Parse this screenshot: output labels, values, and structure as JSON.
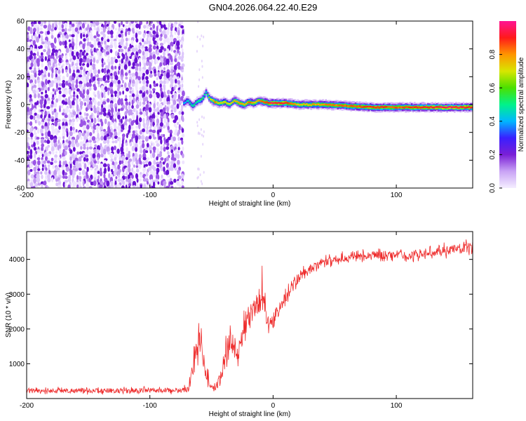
{
  "page": {
    "title": "GN04.2026.064.22.40.E29"
  },
  "chart_data": [
    {
      "type": "heatmap",
      "title": "GN04.2026.064.22.40.E29",
      "xlabel": "Height of straight line (km)",
      "ylabel": "Frequency (Hz)",
      "xlim": [
        -200,
        162
      ],
      "ylim": [
        -60,
        60
      ],
      "xticks": [
        -200,
        -100,
        0,
        100
      ],
      "yticks": [
        -60,
        -40,
        -20,
        0,
        20,
        40,
        60
      ],
      "noise_region_x": [
        -200,
        -73
      ],
      "signal_track": {
        "description": "narrow high-amplitude ridge near 0 Hz",
        "x": [
          -73,
          -70,
          -66,
          -62,
          -58,
          -55,
          -52,
          -48,
          -44,
          -40,
          -36,
          -32,
          -28,
          -24,
          -20,
          -16,
          -12,
          -8,
          -4,
          0,
          10,
          20,
          40,
          60,
          80,
          100,
          120,
          140,
          162
        ],
        "freq": [
          1,
          3,
          -1,
          2,
          4,
          9,
          4,
          2,
          1,
          2,
          0,
          3,
          1,
          0,
          2,
          1,
          3,
          2,
          1,
          1,
          1,
          0,
          0,
          -1,
          -2,
          -2,
          -2,
          -2,
          -2
        ],
        "amplitude": [
          0.4,
          0.45,
          0.5,
          0.5,
          0.55,
          0.45,
          0.65,
          0.85,
          0.7,
          0.75,
          0.7,
          0.75,
          0.8,
          0.75,
          0.85,
          0.75,
          0.8,
          0.85,
          0.9,
          0.95,
          0.9,
          0.75,
          0.8,
          0.85,
          0.9,
          0.85,
          0.9,
          0.95,
          0.9
        ]
      },
      "colorbar": {
        "label": "Normalized spectral amplitude",
        "ticks": [
          "0.0",
          "0.2",
          "0.4",
          "0.6",
          "0.8"
        ],
        "range": [
          0,
          1
        ],
        "colors": [
          "#f4eeff",
          "#c9a3f5",
          "#7a1fd6",
          "#3a1fff",
          "#00b7ff",
          "#00f28a",
          "#4be000",
          "#d8e600",
          "#ff9500",
          "#ff1a1a",
          "#ff1493"
        ]
      }
    },
    {
      "type": "line",
      "xlabel": "Height of straight line (km)",
      "ylabel": "SNR (10 * v/v)",
      "xlim": [
        -200,
        162
      ],
      "ylim": [
        0,
        4800
      ],
      "xticks": [
        -200,
        -100,
        0,
        100
      ],
      "yticks": [
        1000,
        2000,
        3000,
        4000
      ],
      "series": [
        {
          "name": "SNR",
          "color": "#ee2a2a",
          "x": [
            -200,
            -170,
            -140,
            -110,
            -80,
            -70,
            -66,
            -62,
            -59,
            -56,
            -53,
            -50,
            -47,
            -44,
            -40,
            -36,
            -32,
            -28,
            -24,
            -20,
            -16,
            -12,
            -9,
            -6,
            -3,
            0,
            5,
            10,
            15,
            20,
            25,
            30,
            40,
            50,
            60,
            70,
            80,
            90,
            100,
            110,
            120,
            130,
            140,
            150,
            162
          ],
          "values": [
            220,
            230,
            225,
            230,
            240,
            260,
            700,
            1400,
            1700,
            900,
            600,
            300,
            350,
            500,
            1000,
            1600,
            1500,
            1300,
            2000,
            2400,
            2600,
            2700,
            3000,
            2500,
            2100,
            2300,
            2600,
            2900,
            3200,
            3400,
            3600,
            3700,
            3900,
            4000,
            4050,
            4100,
            4150,
            4100,
            4150,
            4100,
            4150,
            4200,
            4250,
            4300,
            4350
          ]
        }
      ],
      "noise_amplitude": [
        120,
        120,
        120,
        120,
        120,
        150,
        500,
        700,
        600,
        400,
        300,
        150,
        200,
        300,
        500,
        700,
        700,
        600,
        700,
        600,
        500,
        500,
        900,
        500,
        400,
        350,
        350,
        300,
        300,
        250,
        250,
        250,
        200,
        200,
        200,
        200,
        200,
        200,
        200,
        200,
        200,
        200,
        250,
        250,
        250
      ]
    }
  ]
}
